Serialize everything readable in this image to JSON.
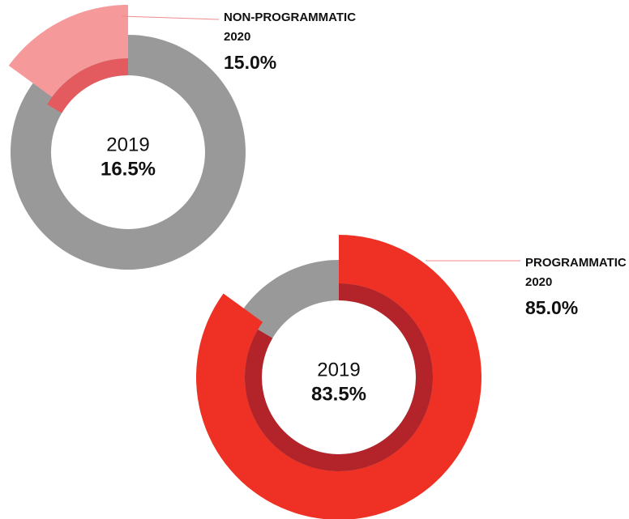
{
  "chart_data": [
    {
      "type": "pie",
      "title": "NON-PROGRAMMATIC",
      "direction": "counterclockwise",
      "ring_color": "#999999",
      "series": [
        {
          "name": "2020",
          "color": "#f5999b",
          "values": [
            15.0
          ],
          "value_labels": [
            "15.0%"
          ]
        },
        {
          "name": "2019",
          "color": "#e35b5e",
          "values": [
            16.5
          ],
          "value_labels": [
            "16.5%"
          ]
        }
      ]
    },
    {
      "type": "pie",
      "title": "PROGRAMMATIC",
      "direction": "clockwise",
      "ring_color": "#999999",
      "series": [
        {
          "name": "2020",
          "color": "#ee3124",
          "values": [
            85.0
          ],
          "value_labels": [
            "85.0%"
          ]
        },
        {
          "name": "2019",
          "color": "#b3242a",
          "values": [
            83.5
          ],
          "value_labels": [
            "83.5%"
          ]
        }
      ]
    }
  ]
}
